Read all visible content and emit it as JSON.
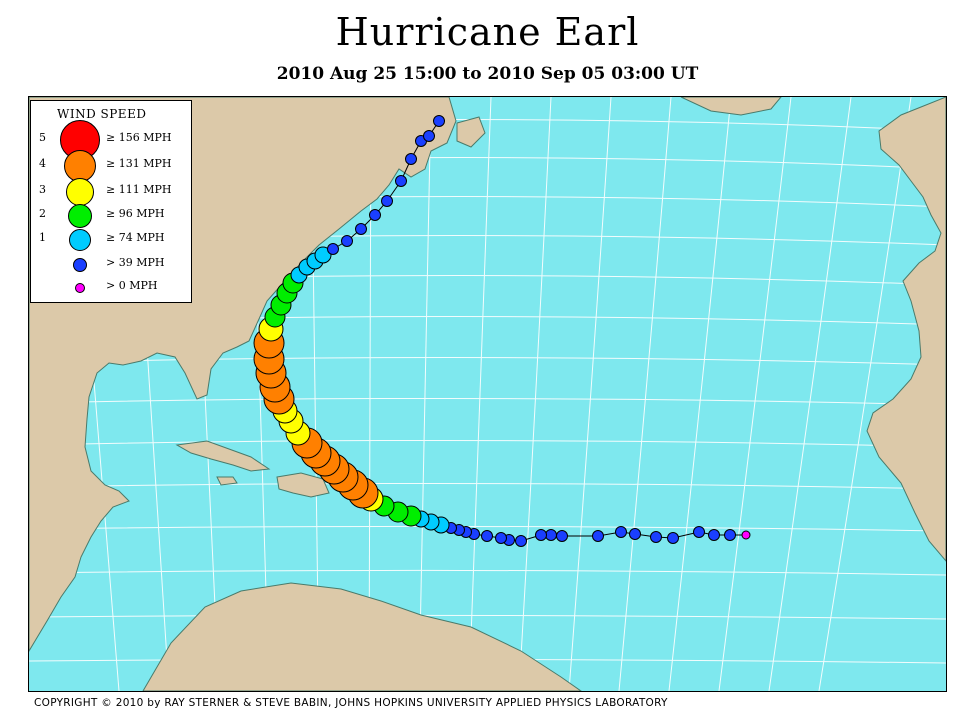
{
  "title": "Hurricane Earl",
  "subtitle": "2010 Aug 25 15:00 to 2010 Sep 05 03:00 UT",
  "legend": {
    "title": "WIND SPEED",
    "rows": [
      {
        "category": "5",
        "label": "≥ 156 MPH",
        "color": "#ff0000"
      },
      {
        "category": "4",
        "label": "≥ 131 MPH",
        "color": "#ff8000"
      },
      {
        "category": "3",
        "label": "≥ 111 MPH",
        "color": "#ffff00"
      },
      {
        "category": "2",
        "label": "≥ 96 MPH",
        "color": "#00ee00"
      },
      {
        "category": "1",
        "label": "≥ 74 MPH",
        "color": "#00ccff"
      },
      {
        "category": "",
        "label": "> 39 MPH",
        "color": "#1a3fff"
      },
      {
        "category": "",
        "label": "> 0 MPH",
        "color": "#ff00ff"
      }
    ]
  },
  "copyright": "COPYRIGHT © 2010 by RAY STERNER & STEVE BABIN, JOHNS HOPKINS UNIVERSITY APPLIED PHYSICS LABORATORY",
  "colors": {
    "ocean": "#7ee8ee",
    "land": "#dcc9a9",
    "grid": "#ffffff",
    "coast": "#4a7a6a"
  }
}
